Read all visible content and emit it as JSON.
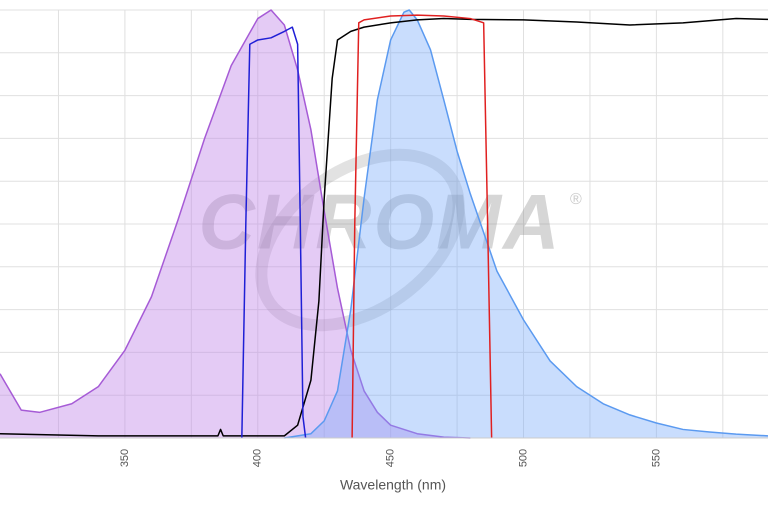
{
  "chart_data": {
    "type": "line",
    "x_label": "Wavelength (nm)",
    "watermark": "CHROMA",
    "watermark_mark": "®",
    "xlim": [
      303,
      592
    ],
    "ylim": [
      0,
      100
    ],
    "xticks": [
      350,
      400,
      450,
      500,
      550
    ],
    "x_minor_ticks": [
      325,
      375,
      425,
      475,
      525,
      575
    ],
    "yticks": [
      0,
      10,
      20,
      30,
      40,
      50,
      60,
      70,
      80,
      90,
      100
    ],
    "grid": true,
    "series": [
      {
        "color": "#a65bd6",
        "fill": "rgba(190,130,230,0.42)",
        "x": [
          303,
          311,
          318,
          330,
          340,
          350,
          360,
          370,
          380,
          390,
          400,
          405,
          410,
          415,
          420,
          425,
          430,
          435,
          440,
          445,
          450,
          460,
          470,
          480
        ],
        "values": [
          15,
          6.5,
          6,
          8,
          12,
          20.5,
          33,
          51,
          70,
          87,
          98,
          100,
          96.5,
          86,
          72,
          53,
          35,
          20.5,
          11,
          6,
          3,
          1,
          0.2,
          0
        ]
      },
      {
        "color": "#5b9af0",
        "fill": "rgba(120,170,250,0.40)",
        "x": [
          410,
          420,
          425,
          430,
          435,
          440,
          445,
          450,
          455,
          457,
          460,
          465,
          470,
          475,
          480,
          490,
          500,
          510,
          520,
          530,
          540,
          550,
          560,
          570,
          580,
          592
        ],
        "values": [
          0,
          1,
          4,
          11,
          30,
          56,
          79,
          93,
          99.5,
          100,
          97.7,
          90.7,
          79,
          67,
          57,
          39,
          27.6,
          18,
          12,
          8,
          5.4,
          3.5,
          2,
          1.4,
          0.9,
          0.5
        ]
      },
      {
        "color": "#000000",
        "x": [
          303,
          340,
          385,
          386,
          387,
          410,
          415,
          420,
          423,
          425,
          428,
          430,
          435,
          440,
          450,
          460,
          470,
          480,
          500,
          520,
          540,
          560,
          580,
          592
        ],
        "values": [
          1,
          0.5,
          0.5,
          2,
          0.5,
          0.5,
          3,
          13.5,
          32,
          56,
          84,
          93,
          95,
          96,
          97,
          97.7,
          98,
          97.8,
          97.7,
          97.2,
          96.5,
          97,
          98,
          97.8
        ]
      },
      {
        "color": "#1f1fd6",
        "x": [
          394,
          395.5,
          397,
          400,
          405,
          410,
          413,
          415,
          416,
          417,
          418
        ],
        "values": [
          0,
          50,
          92,
          93,
          93.5,
          95,
          96,
          92,
          50,
          5,
          0
        ]
      },
      {
        "color": "#e02020",
        "x": [
          435.5,
          436.5,
          438,
          440,
          450,
          460,
          470,
          480,
          485,
          486.5,
          488
        ],
        "values": [
          0,
          50,
          97,
          97.7,
          98.6,
          98.8,
          98.6,
          98,
          97,
          50,
          0
        ]
      }
    ]
  }
}
